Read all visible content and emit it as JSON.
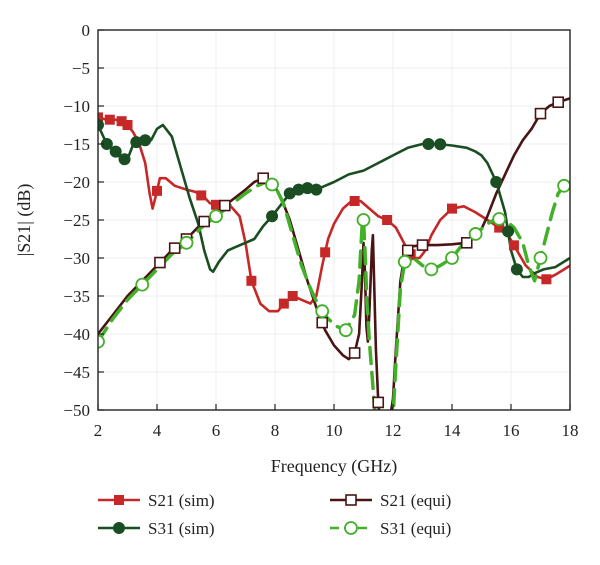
{
  "chart_data": {
    "type": "line",
    "xlabel": "Frequency (GHz)",
    "ylabel": "|S21| (dB)",
    "xlim": [
      2,
      18
    ],
    "ylim": [
      -50,
      0
    ],
    "x_ticks": [
      2,
      4,
      6,
      8,
      10,
      12,
      14,
      16,
      18
    ],
    "y_ticks": [
      0,
      -5,
      -10,
      -15,
      -20,
      -25,
      -30,
      -35,
      -40,
      -45,
      -50
    ],
    "grid": true,
    "legend_placement": "bottom",
    "series": [
      {
        "name": "S21 (sim)",
        "color": "#c62828",
        "line_style": "solid",
        "marker": "filled-square",
        "points": [
          [
            2.0,
            -11.5
          ],
          [
            2.3,
            -11.8
          ],
          [
            2.6,
            -11.8
          ],
          [
            2.8,
            -12.0
          ],
          [
            3.0,
            -12.5
          ],
          [
            3.2,
            -13.5
          ],
          [
            3.4,
            -15.0
          ],
          [
            3.6,
            -17.5
          ],
          [
            3.75,
            -21.5
          ],
          [
            3.85,
            -23.5
          ],
          [
            3.95,
            -22.0
          ],
          [
            4.1,
            -19.5
          ],
          [
            4.3,
            -19.5
          ],
          [
            4.6,
            -20.5
          ],
          [
            5.0,
            -21.0
          ],
          [
            5.3,
            -21.3
          ],
          [
            5.6,
            -22.0
          ],
          [
            5.8,
            -22.8
          ],
          [
            6.0,
            -23.0
          ],
          [
            6.2,
            -23.0
          ],
          [
            6.5,
            -23.2
          ],
          [
            6.8,
            -24.5
          ],
          [
            7.0,
            -28.0
          ],
          [
            7.2,
            -33.0
          ],
          [
            7.5,
            -36.0
          ],
          [
            7.8,
            -37.0
          ],
          [
            8.1,
            -37.0
          ],
          [
            8.3,
            -36.0
          ],
          [
            8.6,
            -35.0
          ],
          [
            8.9,
            -35.5
          ],
          [
            9.2,
            -36.0
          ],
          [
            9.4,
            -35.0
          ],
          [
            9.6,
            -31.0
          ],
          [
            9.8,
            -27.5
          ],
          [
            10.0,
            -25.5
          ],
          [
            10.3,
            -23.5
          ],
          [
            10.6,
            -22.5
          ],
          [
            10.9,
            -22.5
          ],
          [
            11.2,
            -23.5
          ],
          [
            11.5,
            -24.5
          ],
          [
            11.8,
            -25.0
          ],
          [
            12.1,
            -26.0
          ],
          [
            12.3,
            -27.5
          ],
          [
            12.5,
            -29.0
          ],
          [
            12.7,
            -30.0
          ],
          [
            12.9,
            -30.0
          ],
          [
            13.1,
            -29.0
          ],
          [
            13.3,
            -27.0
          ],
          [
            13.6,
            -25.0
          ],
          [
            14.0,
            -23.5
          ],
          [
            14.4,
            -23.2
          ],
          [
            14.8,
            -24.0
          ],
          [
            15.2,
            -25.0
          ],
          [
            15.6,
            -26.0
          ],
          [
            15.9,
            -27.0
          ],
          [
            16.2,
            -29.0
          ],
          [
            16.5,
            -31.0
          ],
          [
            16.9,
            -32.5
          ],
          [
            17.2,
            -32.8
          ],
          [
            17.5,
            -32.2
          ],
          [
            17.8,
            -31.5
          ],
          [
            18.0,
            -31.0
          ]
        ],
        "marker_x": [
          2.0,
          2.4,
          2.8,
          3.0,
          4.0,
          5.5,
          6.0,
          7.2,
          8.3,
          8.6,
          9.7,
          10.7,
          11.8,
          12.6,
          14.0,
          15.6,
          16.1,
          17.2
        ]
      },
      {
        "name": "S21 (equi)",
        "color": "#4a1414",
        "line_style": "solid",
        "marker": "open-square",
        "points": [
          [
            2.0,
            -40.0
          ],
          [
            2.5,
            -37.5
          ],
          [
            3.0,
            -35.0
          ],
          [
            3.5,
            -33.0
          ],
          [
            4.0,
            -31.0
          ],
          [
            4.5,
            -29.0
          ],
          [
            5.0,
            -27.5
          ],
          [
            5.5,
            -25.5
          ],
          [
            6.0,
            -24.0
          ],
          [
            6.5,
            -22.5
          ],
          [
            7.0,
            -21.0
          ],
          [
            7.3,
            -20.0
          ],
          [
            7.6,
            -19.5
          ],
          [
            7.9,
            -20.0
          ],
          [
            8.2,
            -22.0
          ],
          [
            8.5,
            -25.0
          ],
          [
            8.8,
            -29.0
          ],
          [
            9.1,
            -33.0
          ],
          [
            9.4,
            -36.5
          ],
          [
            9.7,
            -39.5
          ],
          [
            10.0,
            -41.5
          ],
          [
            10.3,
            -42.8
          ],
          [
            10.5,
            -43.3
          ],
          [
            10.7,
            -42.5
          ],
          [
            10.85,
            -40.0
          ],
          [
            10.95,
            -33.0
          ],
          [
            11.0,
            -28.0
          ],
          [
            11.05,
            -32.0
          ],
          [
            11.1,
            -39.0
          ],
          [
            11.15,
            -41.0
          ],
          [
            11.2,
            -37.0
          ],
          [
            11.28,
            -29.0
          ],
          [
            11.32,
            -27.0
          ],
          [
            11.36,
            -33.0
          ],
          [
            11.42,
            -42.0
          ],
          [
            11.5,
            -49.0
          ],
          [
            11.55,
            -51.0
          ],
          [
            11.9,
            -51.0
          ],
          [
            12.0,
            -48.5
          ],
          [
            12.1,
            -42.0
          ],
          [
            12.25,
            -33.0
          ],
          [
            12.4,
            -29.5
          ],
          [
            12.6,
            -28.5
          ],
          [
            13.0,
            -28.3
          ],
          [
            13.5,
            -28.3
          ],
          [
            14.0,
            -28.2
          ],
          [
            14.5,
            -28.0
          ],
          [
            14.9,
            -27.0
          ],
          [
            15.2,
            -24.5
          ],
          [
            15.5,
            -21.5
          ],
          [
            15.8,
            -19.0
          ],
          [
            16.1,
            -16.5
          ],
          [
            16.4,
            -14.5
          ],
          [
            16.7,
            -13.0
          ],
          [
            17.0,
            -11.0
          ],
          [
            17.3,
            -10.0
          ],
          [
            17.6,
            -9.5
          ],
          [
            18.0,
            -9.0
          ]
        ],
        "marker_x": [
          4.1,
          4.6,
          5.0,
          5.6,
          6.3,
          7.6,
          9.6,
          10.7,
          11.5,
          12.5,
          13.0,
          14.5,
          17.0,
          17.6
        ]
      },
      {
        "name": "S31 (sim)",
        "color": "#1b4d22",
        "line_style": "solid",
        "marker": "filled-circle",
        "points": [
          [
            2.0,
            -12.5
          ],
          [
            2.3,
            -15.0
          ],
          [
            2.6,
            -16.0
          ],
          [
            2.8,
            -17.0
          ],
          [
            3.0,
            -17.0
          ],
          [
            3.2,
            -15.0
          ],
          [
            3.4,
            -14.5
          ],
          [
            3.6,
            -14.5
          ],
          [
            3.8,
            -14.5
          ],
          [
            4.0,
            -13.0
          ],
          [
            4.2,
            -12.5
          ],
          [
            4.5,
            -14.0
          ],
          [
            4.8,
            -18.0
          ],
          [
            5.1,
            -22.0
          ],
          [
            5.4,
            -25.5
          ],
          [
            5.6,
            -29.0
          ],
          [
            5.8,
            -31.5
          ],
          [
            5.9,
            -31.8
          ],
          [
            6.1,
            -30.5
          ],
          [
            6.4,
            -29.0
          ],
          [
            6.7,
            -28.5
          ],
          [
            7.0,
            -28.0
          ],
          [
            7.3,
            -27.5
          ],
          [
            7.6,
            -25.8
          ],
          [
            7.9,
            -24.5
          ],
          [
            8.2,
            -23.0
          ],
          [
            8.5,
            -21.5
          ],
          [
            8.8,
            -21.0
          ],
          [
            9.1,
            -20.8
          ],
          [
            9.4,
            -21.0
          ],
          [
            9.7,
            -20.5
          ],
          [
            10.0,
            -20.0
          ],
          [
            10.5,
            -19.0
          ],
          [
            11.0,
            -18.5
          ],
          [
            11.5,
            -17.5
          ],
          [
            12.0,
            -16.5
          ],
          [
            12.5,
            -15.5
          ],
          [
            13.0,
            -15.0
          ],
          [
            13.5,
            -15.0
          ],
          [
            14.0,
            -15.2
          ],
          [
            14.5,
            -15.5
          ],
          [
            14.8,
            -16.0
          ],
          [
            15.0,
            -16.5
          ],
          [
            15.2,
            -17.5
          ],
          [
            15.5,
            -20.0
          ],
          [
            15.8,
            -24.0
          ],
          [
            16.0,
            -29.0
          ],
          [
            16.2,
            -31.5
          ],
          [
            16.4,
            -32.5
          ],
          [
            16.6,
            -32.5
          ],
          [
            16.8,
            -32.0
          ],
          [
            17.1,
            -31.5
          ],
          [
            17.5,
            -31.2
          ],
          [
            18.0,
            -30.0
          ]
        ],
        "marker_x": [
          2.0,
          2.3,
          2.6,
          2.9,
          3.3,
          3.6,
          7.9,
          8.5,
          8.8,
          9.1,
          9.4,
          13.2,
          13.6,
          15.5,
          15.9,
          16.2
        ]
      },
      {
        "name": "S31 (equi)",
        "color": "#43b02a",
        "line_style": "dashed",
        "marker": "open-circle",
        "points": [
          [
            2.0,
            -41.0
          ],
          [
            2.5,
            -38.0
          ],
          [
            3.0,
            -35.5
          ],
          [
            3.5,
            -33.5
          ],
          [
            4.0,
            -31.5
          ],
          [
            4.5,
            -29.5
          ],
          [
            5.0,
            -28.0
          ],
          [
            5.5,
            -26.0
          ],
          [
            6.0,
            -24.5
          ],
          [
            6.5,
            -23.0
          ],
          [
            7.0,
            -21.5
          ],
          [
            7.4,
            -20.5
          ],
          [
            7.7,
            -20.0
          ],
          [
            8.0,
            -20.5
          ],
          [
            8.3,
            -23.0
          ],
          [
            8.6,
            -27.0
          ],
          [
            8.9,
            -31.0
          ],
          [
            9.2,
            -34.0
          ],
          [
            9.5,
            -36.5
          ],
          [
            9.8,
            -38.0
          ],
          [
            10.1,
            -39.0
          ],
          [
            10.4,
            -39.5
          ],
          [
            10.7,
            -37.5
          ],
          [
            10.85,
            -33.0
          ],
          [
            10.95,
            -26.0
          ],
          [
            11.0,
            -25.0
          ],
          [
            11.05,
            -29.0
          ],
          [
            11.12,
            -36.0
          ],
          [
            11.2,
            -41.0
          ],
          [
            11.3,
            -46.0
          ],
          [
            11.4,
            -51.0
          ],
          [
            12.0,
            -51.0
          ],
          [
            12.1,
            -44.0
          ],
          [
            12.25,
            -34.0
          ],
          [
            12.4,
            -30.5
          ],
          [
            12.7,
            -30.0
          ],
          [
            13.0,
            -31.0
          ],
          [
            13.3,
            -31.5
          ],
          [
            13.6,
            -31.0
          ],
          [
            14.0,
            -30.0
          ],
          [
            14.3,
            -28.5
          ],
          [
            14.6,
            -27.5
          ],
          [
            14.9,
            -26.5
          ],
          [
            15.2,
            -25.5
          ],
          [
            15.5,
            -24.8
          ],
          [
            15.8,
            -25.0
          ],
          [
            16.1,
            -26.0
          ],
          [
            16.4,
            -28.0
          ],
          [
            16.6,
            -31.0
          ],
          [
            16.8,
            -33.0
          ],
          [
            17.0,
            -30.0
          ],
          [
            17.2,
            -27.0
          ],
          [
            17.4,
            -24.0
          ],
          [
            17.6,
            -21.5
          ],
          [
            17.8,
            -20.5
          ],
          [
            18.0,
            -20.5
          ]
        ],
        "marker_x": [
          2.0,
          3.5,
          5.0,
          6.0,
          7.9,
          9.6,
          10.4,
          11.0,
          12.4,
          13.3,
          14.0,
          14.8,
          15.6,
          17.0,
          17.8
        ]
      }
    ]
  }
}
